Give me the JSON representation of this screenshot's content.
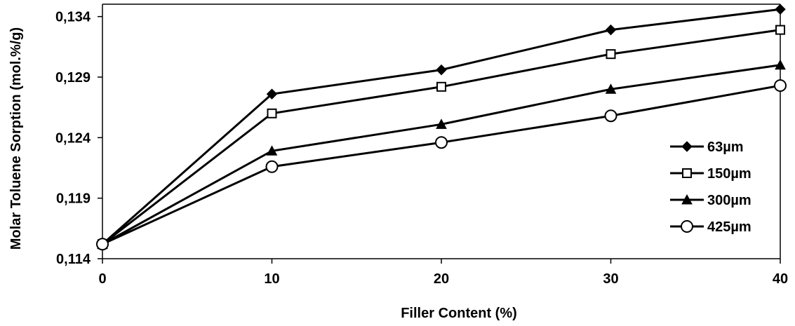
{
  "chart_data": {
    "type": "line",
    "title": "",
    "xlabel": "Filler Content (%)",
    "ylabel": "Molar Toluene Sorption (mol.%/g)",
    "x": [
      0,
      10,
      20,
      30,
      40
    ],
    "x_tick_labels": [
      "0",
      "10",
      "20",
      "30",
      "40"
    ],
    "y_tick_labels": [
      "0,114",
      "0,119",
      "0,124",
      "0,129",
      "0,134"
    ],
    "y_ticks": [
      0.114,
      0.119,
      0.124,
      0.129,
      0.134
    ],
    "xlim": [
      0,
      40
    ],
    "ylim": [
      0.114,
      0.1345
    ],
    "grid": false,
    "legend_position": "right",
    "series": [
      {
        "name": "63µm",
        "marker": "filled-diamond",
        "values": [
          0.1152,
          0.1276,
          0.1296,
          0.1329,
          0.1346
        ]
      },
      {
        "name": "150µm",
        "marker": "open-square",
        "values": [
          0.1152,
          0.126,
          0.1282,
          0.1309,
          0.1329
        ]
      },
      {
        "name": "300µm",
        "marker": "filled-triangle",
        "values": [
          0.1152,
          0.1229,
          0.1251,
          0.128,
          0.13
        ]
      },
      {
        "name": "425µm",
        "marker": "open-circle",
        "values": [
          0.1152,
          0.1216,
          0.1236,
          0.1258,
          0.1283
        ]
      }
    ],
    "line_color": "#000000"
  }
}
